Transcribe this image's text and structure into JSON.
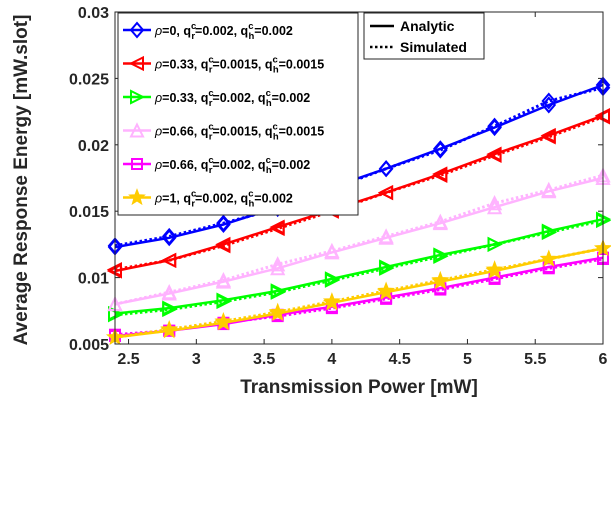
{
  "chart_data": {
    "type": "line",
    "xlabel": "Transmission Power [mW]",
    "ylabel": "Average Response Energy [mW.slot]",
    "xlim": [
      2.4,
      6
    ],
    "ylim": [
      0.005,
      0.03
    ],
    "xticks": [
      2.5,
      3,
      3.5,
      4,
      4.5,
      5,
      5.5,
      6
    ],
    "xtick_labels": [
      "2.5",
      "3",
      "3.5",
      "4",
      "4.5",
      "5",
      "5.5",
      "6"
    ],
    "yticks": [
      0.005,
      0.01,
      0.015,
      0.02,
      0.025,
      0.03
    ],
    "ytick_labels": [
      "0.005",
      "0.01",
      "0.015",
      "0.02",
      "0.025",
      "0.03"
    ],
    "grid": false,
    "x": [
      2.4,
      2.8,
      3.2,
      3.6,
      4.0,
      4.4,
      4.8,
      5.2,
      5.6,
      6.0
    ],
    "series": [
      {
        "name": "ρ=0, q_r^c=0.002, q_h^c=0.002",
        "legend": {
          "rho": "=0, q",
          "r_val": "=0.002, q",
          "h_val": "=0.002"
        },
        "color": "#0000ff",
        "marker": "diamond",
        "analytic": [
          0.0123,
          0.013,
          0.014,
          0.0153,
          0.0168,
          0.0182,
          0.0197,
          0.0213,
          0.023,
          0.0245
        ],
        "simulated": [
          0.0124,
          0.0131,
          0.0141,
          0.0152,
          0.0167,
          0.0182,
          0.0196,
          0.0214,
          0.0233,
          0.0243
        ]
      },
      {
        "name": "ρ=0.33, q_r^c=0.0015, q_h^c=0.0015",
        "legend": {
          "rho": "=0.33, q",
          "r_val": "=0.0015, q",
          "h_val": "=0.0015"
        },
        "color": "#ff0000",
        "marker": "triangle-left",
        "analytic": [
          0.0105,
          0.0113,
          0.0125,
          0.0138,
          0.0151,
          0.0164,
          0.0178,
          0.0193,
          0.0207,
          0.0222
        ],
        "simulated": [
          0.0106,
          0.0113,
          0.0124,
          0.0137,
          0.015,
          0.0164,
          0.0177,
          0.0192,
          0.0206,
          0.0221
        ]
      },
      {
        "name": "ρ=0.33, q_r^c=0.002, q_h^c=0.002",
        "legend": {
          "rho": "=0.33, q",
          "r_val": "=0.002, q",
          "h_val": "=0.002"
        },
        "color": "#00ff00",
        "marker": "triangle-right",
        "analytic": [
          0.0073,
          0.0077,
          0.0083,
          0.009,
          0.0099,
          0.0108,
          0.0117,
          0.0125,
          0.0135,
          0.0144
        ],
        "simulated": [
          0.0072,
          0.0076,
          0.0082,
          0.0089,
          0.0098,
          0.0107,
          0.0116,
          0.0125,
          0.0134,
          0.0143
        ]
      },
      {
        "name": "ρ=0.66, q_r^c=0.0015, q_h^c=0.0015",
        "legend": {
          "rho": "=0.66, q",
          "r_val": "=0.0015, q",
          "h_val": "=0.0015"
        },
        "color": "#ffb3ff",
        "marker": "triangle-up",
        "analytic": [
          0.008,
          0.0088,
          0.0097,
          0.0107,
          0.0119,
          0.013,
          0.0141,
          0.0153,
          0.0165,
          0.0175
        ],
        "simulated": [
          0.008,
          0.0089,
          0.0098,
          0.011,
          0.012,
          0.0131,
          0.0142,
          0.0156,
          0.0166,
          0.0177
        ]
      },
      {
        "name": "ρ=0.66, q_r^c=0.002, q_h^c=0.002",
        "legend": {
          "rho": "=0.66, q",
          "r_val": "=0.002, q",
          "h_val": "=0.002"
        },
        "color": "#ff00ff",
        "marker": "square",
        "analytic": [
          0.0056,
          0.006,
          0.0065,
          0.0072,
          0.0078,
          0.0085,
          0.0092,
          0.01,
          0.0108,
          0.0115
        ],
        "simulated": [
          0.0057,
          0.006,
          0.0066,
          0.0071,
          0.0077,
          0.0084,
          0.0091,
          0.0099,
          0.0107,
          0.0114
        ]
      },
      {
        "name": "ρ=1, q_r^c=0.002, q_h^c=0.002",
        "legend": {
          "rho": "=1, q",
          "r_val": "=0.002, q",
          "h_val": "=0.002"
        },
        "color": "#ffcc00",
        "marker": "star",
        "analytic": [
          0.0055,
          0.006,
          0.0066,
          0.0073,
          0.0081,
          0.0089,
          0.0097,
          0.0105,
          0.0114,
          0.0122
        ],
        "simulated": [
          0.0055,
          0.0061,
          0.0067,
          0.0074,
          0.0082,
          0.009,
          0.0098,
          0.0106,
          0.0114,
          0.0122
        ]
      }
    ],
    "line_legend": [
      {
        "label": "Analytic",
        "style": "solid"
      },
      {
        "label": "Simulated",
        "style": "dotted"
      }
    ],
    "legend_placement": "top-left",
    "line_legend_placement": "top-right",
    "colors": {
      "axis": "#262626",
      "background": "#ffffff"
    }
  }
}
